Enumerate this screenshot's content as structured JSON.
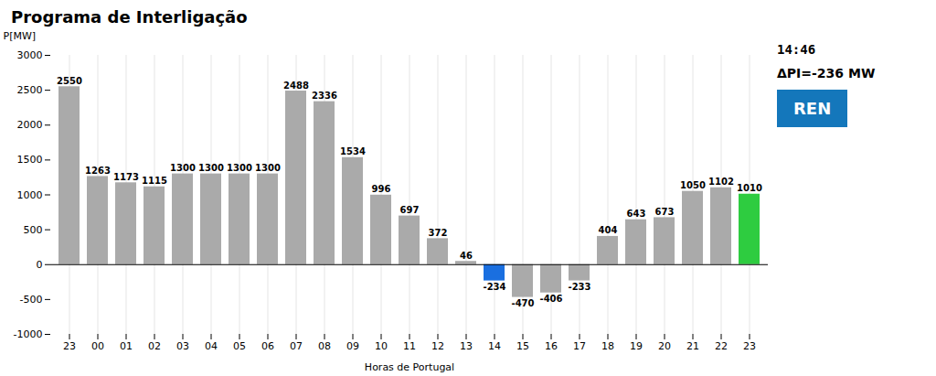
{
  "chart_data": {
    "type": "bar",
    "title": "Programa de Interligação",
    "xlabel": "Horas de Portugal",
    "ylabel": "P[MW]",
    "categories": [
      "23",
      "00",
      "01",
      "02",
      "03",
      "04",
      "05",
      "06",
      "07",
      "08",
      "09",
      "10",
      "11",
      "12",
      "13",
      "14",
      "15",
      "16",
      "17",
      "18",
      "19",
      "20",
      "21",
      "22",
      "23"
    ],
    "values": [
      2550,
      1263,
      1173,
      1115,
      1300,
      1300,
      1300,
      1300,
      2488,
      2336,
      1534,
      996,
      697,
      372,
      46,
      -234,
      -470,
      -406,
      -233,
      404,
      643,
      673,
      1050,
      1102,
      1010
    ],
    "colors": [
      "#aaaaaa",
      "#aaaaaa",
      "#aaaaaa",
      "#aaaaaa",
      "#aaaaaa",
      "#aaaaaa",
      "#aaaaaa",
      "#aaaaaa",
      "#aaaaaa",
      "#aaaaaa",
      "#aaaaaa",
      "#aaaaaa",
      "#aaaaaa",
      "#aaaaaa",
      "#aaaaaa",
      "#1a6fe0",
      "#aaaaaa",
      "#aaaaaa",
      "#aaaaaa",
      "#aaaaaa",
      "#aaaaaa",
      "#aaaaaa",
      "#aaaaaa",
      "#aaaaaa",
      "#2ecc40"
    ],
    "ylim": [
      -1000,
      3000
    ],
    "yticks": [
      -1000,
      -500,
      0,
      500,
      1000,
      1500,
      2000,
      2500,
      3000
    ],
    "grid": "x",
    "data_labels": true,
    "annotations": [
      "14:46",
      "ΔPI=-236 MW",
      "REN"
    ]
  }
}
